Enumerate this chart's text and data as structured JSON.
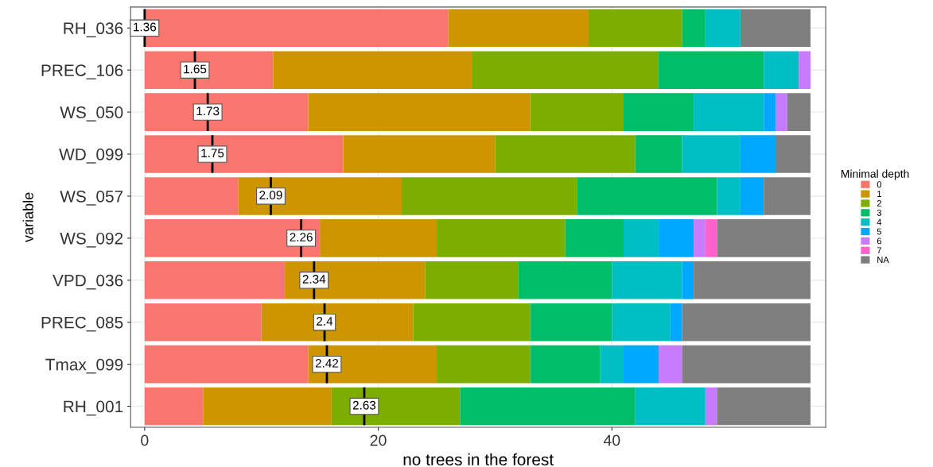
{
  "chart_data": {
    "type": "bar",
    "orientation": "horizontal",
    "stacked": true,
    "categories": [
      "RH_036",
      "PREC_106",
      "WS_050",
      "WD_099",
      "WS_057",
      "WS_092",
      "VPD_036",
      "PREC_085",
      "Tmax_099",
      "RH_001"
    ],
    "series": [
      {
        "name": "0",
        "color": "#f8766d",
        "values": [
          26,
          11,
          14,
          17,
          8,
          15,
          12,
          10,
          14,
          5
        ]
      },
      {
        "name": "1",
        "color": "#cd9600",
        "values": [
          12,
          17,
          19,
          13,
          14,
          10,
          12,
          13,
          11,
          11
        ]
      },
      {
        "name": "2",
        "color": "#7cae00",
        "values": [
          8,
          16,
          8,
          12,
          15,
          11,
          8,
          10,
          8,
          11
        ]
      },
      {
        "name": "3",
        "color": "#00be67",
        "values": [
          2,
          9,
          6,
          4,
          12,
          5,
          8,
          7,
          6,
          15
        ]
      },
      {
        "name": "4",
        "color": "#00bfc4",
        "values": [
          3,
          3,
          6,
          5,
          2,
          3,
          6,
          5,
          2,
          6
        ]
      },
      {
        "name": "5",
        "color": "#00a9ff",
        "values": [
          0,
          0,
          1,
          3,
          2,
          3,
          1,
          1,
          3,
          0
        ]
      },
      {
        "name": "6",
        "color": "#c77cff",
        "values": [
          0,
          1,
          1,
          0,
          0,
          1,
          0,
          0,
          2,
          1
        ]
      },
      {
        "name": "7",
        "color": "#ff61cc",
        "values": [
          0,
          0,
          0,
          0,
          0,
          1,
          0,
          0,
          0,
          0
        ]
      },
      {
        "name": "NA",
        "color": "#7f7f7f",
        "values": [
          6,
          0,
          2,
          3,
          4,
          8,
          10,
          11,
          11,
          8
        ]
      }
    ],
    "xlim": [
      -1.2,
      58.3
    ],
    "xticks": [
      0,
      20,
      40
    ],
    "xlabel": "no trees in the forest",
    "ylabel": "variable",
    "legend_title": "Minimal depth",
    "legend": "right",
    "grid": true,
    "annotations": [
      {
        "text": "1.36",
        "x": 0,
        "y": "RH_036"
      },
      {
        "text": "1.65",
        "x": 4.3,
        "y": "PREC_106"
      },
      {
        "text": "1.73",
        "x": 5.4,
        "y": "WS_050"
      },
      {
        "text": "1.75",
        "x": 5.8,
        "y": "WD_099"
      },
      {
        "text": "2.09",
        "x": 10.8,
        "y": "WS_057"
      },
      {
        "text": "2.26",
        "x": 13.4,
        "y": "WS_092"
      },
      {
        "text": "2.34",
        "x": 14.5,
        "y": "VPD_036"
      },
      {
        "text": "2.4",
        "x": 15.4,
        "y": "PREC_085"
      },
      {
        "text": "2.42",
        "x": 15.6,
        "y": "Tmax_099"
      },
      {
        "text": "2.63",
        "x": 18.8,
        "y": "RH_001"
      }
    ]
  }
}
